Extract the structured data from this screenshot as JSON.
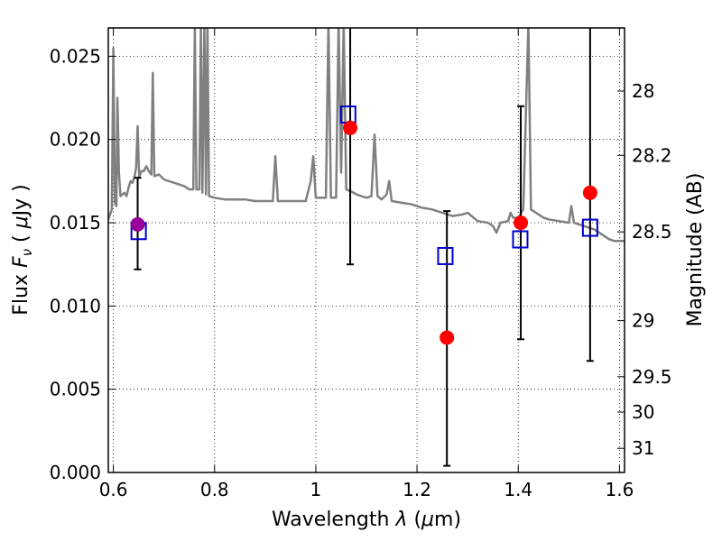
{
  "chart_data": {
    "type": "scatter",
    "xlabel": "Wavelength  λ (μm)",
    "ylabel": "Flux  F_ν  ( μJy )",
    "ylabel_parts": {
      "pre": "Flux  ",
      "var": "F",
      "sub": "ν",
      "post": "  ( ",
      "mu": "μ",
      "unit": "Jy )"
    },
    "xlabel_parts": {
      "pre": "Wavelength  ",
      "var": "λ",
      "post": " (",
      "mu": "μ",
      "unit": "m)"
    },
    "y2label": "Magnitude (AB)",
    "xlim": [
      0.59,
      1.61
    ],
    "ylim": [
      0.0,
      0.0267
    ],
    "grid": true,
    "x_ticks": [
      {
        "value": 0.6,
        "label": "0.6"
      },
      {
        "value": 0.8,
        "label": "0.8"
      },
      {
        "value": 1.0,
        "label": "1"
      },
      {
        "value": 1.2,
        "label": "1.2"
      },
      {
        "value": 1.4,
        "label": "1.4"
      },
      {
        "value": 1.6,
        "label": "1.6"
      }
    ],
    "y_ticks": [
      {
        "value": 0.0,
        "label": "0.000"
      },
      {
        "value": 0.005,
        "label": "0.005"
      },
      {
        "value": 0.01,
        "label": "0.010"
      },
      {
        "value": 0.015,
        "label": "0.015"
      },
      {
        "value": 0.02,
        "label": "0.020"
      },
      {
        "value": 0.025,
        "label": "0.025"
      }
    ],
    "y2_ticks": [
      {
        "flux": 0.02291,
        "label": "28"
      },
      {
        "flux": 0.01905,
        "label": "28.2"
      },
      {
        "flux": 0.01445,
        "label": "28.5"
      },
      {
        "flux": 0.00912,
        "label": "29"
      },
      {
        "flux": 0.00575,
        "label": "29.5"
      },
      {
        "flux": 0.00363,
        "label": "30"
      },
      {
        "flux": 0.00145,
        "label": "31"
      }
    ],
    "colors": {
      "model": "#808080",
      "observed": "#ff0000",
      "observed_edge": "#cc0000",
      "synthetic": "#0000cc",
      "overlap": "#990099",
      "errorbar": "#000000"
    },
    "model_spectrum": [
      [
        0.59,
        0.0152
      ],
      [
        0.597,
        0.0158
      ],
      [
        0.6,
        0.0255
      ],
      [
        0.603,
        0.0162
      ],
      [
        0.606,
        0.016
      ],
      [
        0.608,
        0.0225
      ],
      [
        0.611,
        0.018
      ],
      [
        0.614,
        0.0166
      ],
      [
        0.618,
        0.0167
      ],
      [
        0.622,
        0.0168
      ],
      [
        0.626,
        0.0166
      ],
      [
        0.63,
        0.0171
      ],
      [
        0.634,
        0.0175
      ],
      [
        0.638,
        0.0174
      ],
      [
        0.642,
        0.0178
      ],
      [
        0.645,
        0.0183
      ],
      [
        0.648,
        0.0208
      ],
      [
        0.651,
        0.0177
      ],
      [
        0.655,
        0.0181
      ],
      [
        0.66,
        0.0181
      ],
      [
        0.665,
        0.0184
      ],
      [
        0.67,
        0.0181
      ],
      [
        0.675,
        0.0179
      ],
      [
        0.678,
        0.024
      ],
      [
        0.681,
        0.0178
      ],
      [
        0.69,
        0.0179
      ],
      [
        0.7,
        0.0176
      ],
      [
        0.71,
        0.0175
      ],
      [
        0.72,
        0.0174
      ],
      [
        0.73,
        0.0173
      ],
      [
        0.74,
        0.0172
      ],
      [
        0.75,
        0.017
      ],
      [
        0.758,
        0.017
      ],
      [
        0.761,
        0.027
      ],
      [
        0.764,
        0.017
      ],
      [
        0.77,
        0.017
      ],
      [
        0.773,
        0.027
      ],
      [
        0.776,
        0.0168
      ],
      [
        0.78,
        0.027
      ],
      [
        0.783,
        0.0167
      ],
      [
        0.786,
        0.027
      ],
      [
        0.789,
        0.0166
      ],
      [
        0.8,
        0.0165
      ],
      [
        0.82,
        0.0164
      ],
      [
        0.84,
        0.0164
      ],
      [
        0.86,
        0.0164
      ],
      [
        0.88,
        0.0163
      ],
      [
        0.9,
        0.0163
      ],
      [
        0.915,
        0.0163
      ],
      [
        0.92,
        0.019
      ],
      [
        0.925,
        0.0163
      ],
      [
        0.95,
        0.0163
      ],
      [
        0.98,
        0.0163
      ],
      [
        0.99,
        0.0175
      ],
      [
        0.995,
        0.019
      ],
      [
        1.0,
        0.0165
      ],
      [
        1.01,
        0.0165
      ],
      [
        1.02,
        0.0165
      ],
      [
        1.025,
        0.027
      ],
      [
        1.03,
        0.0165
      ],
      [
        1.04,
        0.0165
      ],
      [
        1.045,
        0.027
      ],
      [
        1.05,
        0.018
      ],
      [
        1.055,
        0.027
      ],
      [
        1.06,
        0.017
      ],
      [
        1.075,
        0.0168
      ],
      [
        1.08,
        0.0167
      ],
      [
        1.09,
        0.0166
      ],
      [
        1.1,
        0.0165
      ],
      [
        1.11,
        0.0166
      ],
      [
        1.116,
        0.0203
      ],
      [
        1.122,
        0.0166
      ],
      [
        1.13,
        0.0164
      ],
      [
        1.14,
        0.0167
      ],
      [
        1.145,
        0.0175
      ],
      [
        1.15,
        0.0163
      ],
      [
        1.17,
        0.0162
      ],
      [
        1.19,
        0.0161
      ],
      [
        1.21,
        0.0159
      ],
      [
        1.23,
        0.0158
      ],
      [
        1.25,
        0.0156
      ],
      [
        1.27,
        0.0154
      ],
      [
        1.29,
        0.0155
      ],
      [
        1.3,
        0.0156
      ],
      [
        1.32,
        0.0151
      ],
      [
        1.34,
        0.015
      ],
      [
        1.35,
        0.0148
      ],
      [
        1.357,
        0.0144
      ],
      [
        1.365,
        0.015
      ],
      [
        1.38,
        0.0151
      ],
      [
        1.385,
        0.0156
      ],
      [
        1.39,
        0.0153
      ],
      [
        1.4,
        0.0153
      ],
      [
        1.41,
        0.0158
      ],
      [
        1.42,
        0.027
      ],
      [
        1.425,
        0.0158
      ],
      [
        1.44,
        0.0155
      ],
      [
        1.45,
        0.0153
      ],
      [
        1.46,
        0.0152
      ],
      [
        1.48,
        0.0151
      ],
      [
        1.5,
        0.015
      ],
      [
        1.505,
        0.016
      ],
      [
        1.51,
        0.015
      ],
      [
        1.52,
        0.0149
      ],
      [
        1.54,
        0.0147
      ],
      [
        1.55,
        0.0146
      ],
      [
        1.56,
        0.0144
      ],
      [
        1.57,
        0.0142
      ],
      [
        1.58,
        0.014
      ],
      [
        1.59,
        0.0139
      ],
      [
        1.61,
        0.0139
      ]
    ],
    "observed": [
      {
        "x": 0.648,
        "y": 0.0149,
        "yerr_low": 0.0122,
        "yerr_high": 0.0177
      },
      {
        "x": 1.068,
        "y": 0.0207,
        "yerr_low": 0.0125,
        "yerr_high": 0.027
      },
      {
        "x": 1.259,
        "y": 0.0081,
        "yerr_low": 0.0004,
        "yerr_high": 0.0157
      },
      {
        "x": 1.405,
        "y": 0.015,
        "yerr_low": 0.008,
        "yerr_high": 0.022
      },
      {
        "x": 1.542,
        "y": 0.0168,
        "yerr_low": 0.0067,
        "yerr_high": 0.027
      }
    ],
    "synthetic": [
      {
        "x": 0.65,
        "y": 0.0145
      },
      {
        "x": 1.064,
        "y": 0.0215
      },
      {
        "x": 1.256,
        "y": 0.013
      },
      {
        "x": 1.404,
        "y": 0.014
      },
      {
        "x": 1.542,
        "y": 0.0147
      }
    ]
  }
}
